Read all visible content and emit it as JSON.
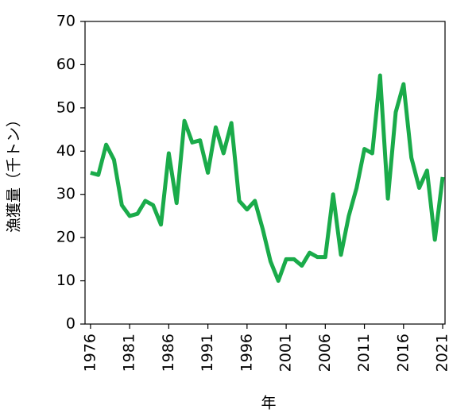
{
  "chart_data": {
    "type": "line",
    "x_label": "年",
    "y_label": "漁獲量（千トン）",
    "x": [
      1976,
      1977,
      1978,
      1979,
      1980,
      1981,
      1982,
      1983,
      1984,
      1985,
      1986,
      1987,
      1988,
      1989,
      1990,
      1991,
      1992,
      1993,
      1994,
      1995,
      1996,
      1997,
      1998,
      1999,
      2000,
      2001,
      2002,
      2003,
      2004,
      2005,
      2006,
      2007,
      2008,
      2009,
      2010,
      2011,
      2012,
      2013,
      2014,
      2015,
      2016,
      2017,
      2018,
      2019,
      2020,
      2021
    ],
    "series": [
      {
        "color": "#1aab4a",
        "values": [
          35,
          34.5,
          41.5,
          38,
          27.5,
          25,
          25.5,
          28.5,
          27.5,
          23,
          39.5,
          28,
          47,
          42,
          42.5,
          35,
          45.5,
          39.5,
          46.5,
          28.5,
          26.5,
          28.5,
          22,
          14.5,
          10,
          15,
          15,
          13.5,
          16.5,
          15.5,
          15.5,
          30,
          16,
          25,
          31.5,
          40.5,
          39.5,
          57.5,
          29,
          49,
          55.5,
          38.5,
          31.5,
          35.5,
          19.5,
          34
        ]
      }
    ],
    "xlim": [
      1975.3,
      2021.3
    ],
    "xticks": [
      1976,
      1981,
      1986,
      1991,
      1996,
      2001,
      2006,
      2011,
      2016,
      2021
    ],
    "ylim": [
      0,
      70
    ],
    "yticks": [
      0,
      10,
      20,
      30,
      40,
      50,
      60,
      70
    ]
  }
}
